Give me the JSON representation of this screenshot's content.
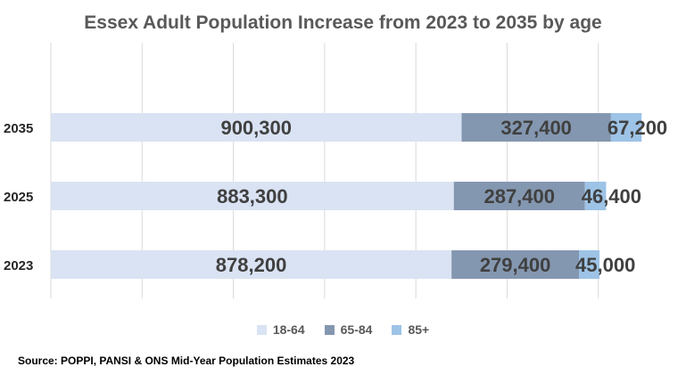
{
  "chart_data": {
    "type": "bar",
    "orientation": "horizontal",
    "stacked": true,
    "title": "Essex Adult Population Increase from 2023 to 2035 by age",
    "categories": [
      "2035",
      "2025",
      "2023"
    ],
    "series": [
      {
        "name": "18-64",
        "color": "#dae3f3",
        "values": [
          900300,
          883300,
          878200
        ],
        "labels": [
          "900,300",
          "883,300",
          "878,200"
        ]
      },
      {
        "name": "65-84",
        "color": "#8497b0",
        "values": [
          327400,
          287400,
          279400
        ],
        "labels": [
          "327,400",
          "287,400",
          "279,400"
        ]
      },
      {
        "name": "85+",
        "color": "#9dc3e6",
        "values": [
          67200,
          46400,
          45000
        ],
        "labels": [
          "67,200",
          "46,400",
          "45,000"
        ]
      }
    ],
    "xlim": [
      0,
      1400000
    ],
    "grid": true,
    "legend": "bottom"
  },
  "source": "Source: POPPI, PANSI & ONS Mid-Year Population Estimates 2023"
}
